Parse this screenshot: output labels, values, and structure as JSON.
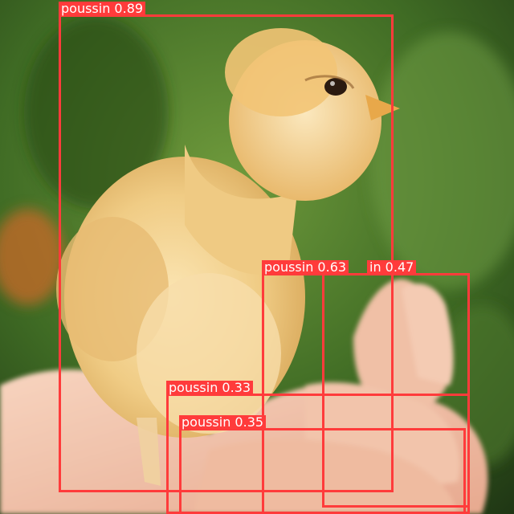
{
  "scene": {
    "subject": "chick-on-hand",
    "background_color": "#3d6a22"
  },
  "detections": [
    {
      "label": "poussin 0.89",
      "class": "poussin",
      "confidence": 0.89
    },
    {
      "label": "poussin 0.63",
      "class": "poussin",
      "confidence": 0.63
    },
    {
      "label": "in 0.47",
      "class": "poussin",
      "confidence": 0.47
    },
    {
      "label": "poussin 0.33",
      "class": "poussin",
      "confidence": 0.33
    },
    {
      "label": "poussin 0.35",
      "class": "poussin",
      "confidence": 0.35
    }
  ],
  "box_color": "#ff3b3b",
  "label_text_color": "#ffffff"
}
